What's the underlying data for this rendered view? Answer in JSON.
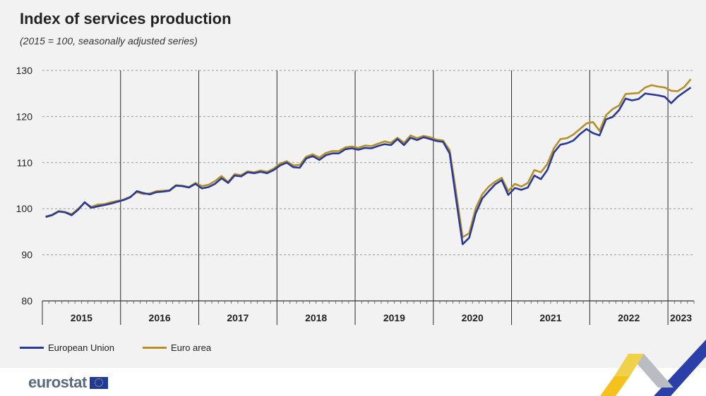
{
  "title": "Index of services production",
  "subtitle": "(2015 = 100, seasonally adjusted series)",
  "logo_text": "eurostat",
  "colors": {
    "eu": "#28399a",
    "ea": "#b39028",
    "grid": "#2b2b2b",
    "axis": "#333333"
  },
  "chart_data": {
    "type": "line",
    "title": "Index of services production",
    "subtitle": "(2015 = 100, seasonally adjusted series)",
    "xlabel": "",
    "ylabel": "",
    "ylim": [
      80,
      130
    ],
    "yticks": [
      "80",
      "90",
      "100",
      "110",
      "120",
      "130"
    ],
    "year_labels": [
      "2015",
      "2016",
      "2017",
      "2018",
      "2019",
      "2020",
      "2021",
      "2022",
      "2023"
    ],
    "x_start": "2015-01",
    "legend_position": "bottom-left",
    "series": [
      {
        "name": "European Union",
        "values": [
          98.2,
          98.6,
          99.4,
          99.2,
          98.6,
          99.8,
          101.4,
          100.2,
          100.5,
          100.8,
          101.1,
          101.5,
          101.9,
          102.5,
          103.8,
          103.4,
          103.1,
          103.6,
          103.7,
          103.9,
          105.0,
          104.9,
          104.6,
          105.4,
          104.4,
          104.7,
          105.4,
          106.6,
          105.6,
          107.2,
          107.0,
          107.9,
          107.7,
          108.0,
          107.7,
          108.4,
          109.4,
          110.0,
          109.0,
          108.9,
          110.9,
          111.4,
          110.6,
          111.6,
          112.0,
          112.0,
          112.9,
          113.1,
          112.8,
          113.2,
          113.1,
          113.6,
          114.0,
          113.8,
          115.1,
          113.8,
          115.4,
          114.9,
          115.5,
          115.1,
          114.7,
          114.5,
          112.0,
          102.0,
          92.3,
          93.7,
          99.0,
          102.2,
          103.8,
          105.3,
          106.2,
          103.0,
          104.5,
          104.1,
          104.6,
          107.2,
          106.4,
          108.4,
          112.2,
          113.9,
          114.2,
          114.8,
          116.2,
          117.3,
          116.4,
          115.9,
          119.4,
          119.9,
          121.4,
          123.9,
          123.5,
          123.8,
          125.0,
          124.8,
          124.6,
          124.3,
          122.9,
          124.3,
          125.3,
          126.3
        ]
      },
      {
        "name": "Euro area",
        "values": [
          98.3,
          98.7,
          99.5,
          99.3,
          98.8,
          100.0,
          101.3,
          100.4,
          100.9,
          101.0,
          101.4,
          101.7,
          102.0,
          102.6,
          103.6,
          103.2,
          103.3,
          103.8,
          103.9,
          104.0,
          105.1,
          105.0,
          104.7,
          105.6,
          104.9,
          105.2,
          106.0,
          107.1,
          105.8,
          107.5,
          107.3,
          108.1,
          107.9,
          108.3,
          108.0,
          108.7,
          109.8,
          110.3,
          109.4,
          109.5,
          111.3,
          111.8,
          111.1,
          112.1,
          112.5,
          112.5,
          113.3,
          113.5,
          113.2,
          113.7,
          113.6,
          114.1,
          114.6,
          114.3,
          115.4,
          114.3,
          115.9,
          115.3,
          115.8,
          115.5,
          115.0,
          114.8,
          112.7,
          103.5,
          93.8,
          94.7,
          100.1,
          103.1,
          104.8,
          105.9,
          106.7,
          103.8,
          105.4,
          104.8,
          105.6,
          108.4,
          107.9,
          109.7,
          113.1,
          115.1,
          115.3,
          116.1,
          117.3,
          118.5,
          118.8,
          116.9,
          120.3,
          121.6,
          122.4,
          124.9,
          125.0,
          125.1,
          126.3,
          126.8,
          126.5,
          126.3,
          125.6,
          125.5,
          126.4,
          128.1
        ]
      }
    ]
  }
}
